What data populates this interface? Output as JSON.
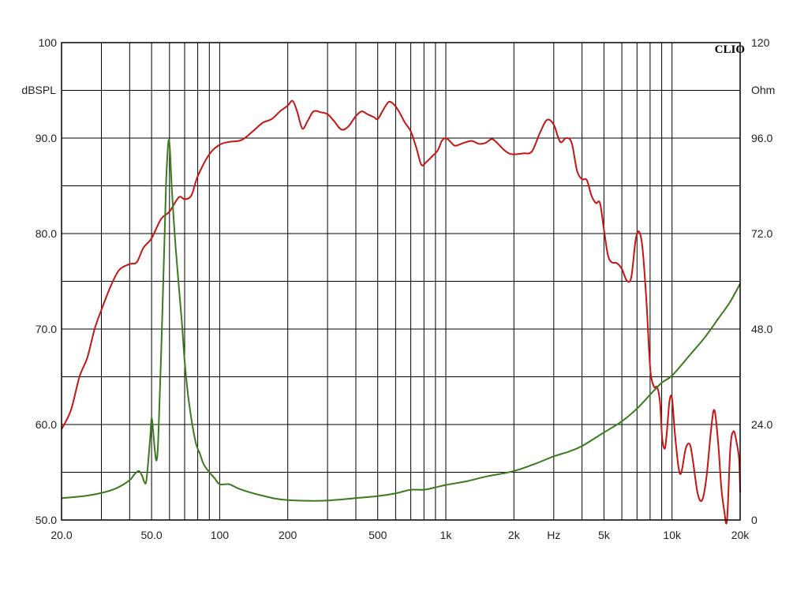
{
  "chart_data": {
    "type": "line",
    "brand": "CLIO",
    "x_scale": "log",
    "xlim": [
      20,
      20000
    ],
    "x_tick_labels": [
      {
        "value": 20,
        "label": "20.0"
      },
      {
        "value": 50,
        "label": "50.0"
      },
      {
        "value": 100,
        "label": "100"
      },
      {
        "value": 200,
        "label": "200"
      },
      {
        "value": 500,
        "label": "500"
      },
      {
        "value": 1000,
        "label": "1k"
      },
      {
        "value": 2000,
        "label": "2k"
      },
      {
        "value": 3000,
        "label": "Hz"
      },
      {
        "value": 5000,
        "label": "5k"
      },
      {
        "value": 10000,
        "label": "10k"
      },
      {
        "value": 20000,
        "label": "20k"
      }
    ],
    "left_axis": {
      "unit": "dBSPL",
      "ylim": [
        50,
        100
      ],
      "tick_labels": [
        {
          "value": 100,
          "label": "100"
        },
        {
          "value": 90,
          "label": "90.0"
        },
        {
          "value": 80,
          "label": "80.0"
        },
        {
          "value": 70,
          "label": "70.0"
        },
        {
          "value": 60,
          "label": "60.0"
        },
        {
          "value": 50,
          "label": "50.0"
        }
      ]
    },
    "right_axis": {
      "unit": "Ohm",
      "ylim": [
        0,
        120
      ],
      "tick_labels": [
        {
          "value": 120,
          "label": "120"
        },
        {
          "value": 96,
          "label": "96.0"
        },
        {
          "value": 72,
          "label": "72.0"
        },
        {
          "value": 48,
          "label": "48.0"
        },
        {
          "value": 24,
          "label": "24.0"
        },
        {
          "value": 0,
          "label": "0"
        }
      ]
    },
    "grid": true,
    "series": [
      {
        "axis": "left",
        "color": "#c81414",
        "points": [
          [
            20,
            59.5
          ],
          [
            22,
            61.5
          ],
          [
            24,
            65
          ],
          [
            26,
            67
          ],
          [
            28,
            70
          ],
          [
            30,
            72
          ],
          [
            33,
            74.5
          ],
          [
            36,
            76.2
          ],
          [
            40,
            76.8
          ],
          [
            43,
            77
          ],
          [
            46,
            78.5
          ],
          [
            50,
            79.5
          ],
          [
            55,
            81.5
          ],
          [
            60,
            82.3
          ],
          [
            66,
            83.8
          ],
          [
            70,
            83.6
          ],
          [
            75,
            84
          ],
          [
            80,
            86
          ],
          [
            90,
            88.3
          ],
          [
            100,
            89.3
          ],
          [
            110,
            89.6
          ],
          [
            125,
            89.8
          ],
          [
            140,
            90.7
          ],
          [
            155,
            91.6
          ],
          [
            170,
            92
          ],
          [
            185,
            92.8
          ],
          [
            200,
            93.4
          ],
          [
            210,
            93.9
          ],
          [
            220,
            92.8
          ],
          [
            232,
            91
          ],
          [
            245,
            91.8
          ],
          [
            260,
            92.8
          ],
          [
            280,
            92.7
          ],
          [
            300,
            92.5
          ],
          [
            320,
            91.8
          ],
          [
            345,
            90.9
          ],
          [
            370,
            91.2
          ],
          [
            400,
            92.3
          ],
          [
            425,
            92.8
          ],
          [
            450,
            92.5
          ],
          [
            480,
            92.2
          ],
          [
            500,
            92
          ],
          [
            530,
            93
          ],
          [
            560,
            93.8
          ],
          [
            590,
            93.5
          ],
          [
            620,
            92.8
          ],
          [
            660,
            91.6
          ],
          [
            700,
            90.7
          ],
          [
            740,
            89
          ],
          [
            780,
            87.2
          ],
          [
            820,
            87.5
          ],
          [
            870,
            88.1
          ],
          [
            920,
            88.7
          ],
          [
            960,
            89.7
          ],
          [
            1000,
            90
          ],
          [
            1050,
            89.6
          ],
          [
            1100,
            89.2
          ],
          [
            1200,
            89.5
          ],
          [
            1300,
            89.7
          ],
          [
            1400,
            89.4
          ],
          [
            1500,
            89.5
          ],
          [
            1600,
            89.9
          ],
          [
            1700,
            89.4
          ],
          [
            1800,
            88.8
          ],
          [
            1900,
            88.4
          ],
          [
            2000,
            88.3
          ],
          [
            2200,
            88.4
          ],
          [
            2400,
            88.6
          ],
          [
            2600,
            90.5
          ],
          [
            2800,
            91.9
          ],
          [
            3000,
            91.4
          ],
          [
            3200,
            89.6
          ],
          [
            3400,
            90
          ],
          [
            3600,
            89.5
          ],
          [
            3800,
            86.6
          ],
          [
            4000,
            85.7
          ],
          [
            4200,
            85.6
          ],
          [
            4400,
            84
          ],
          [
            4600,
            83.2
          ],
          [
            4800,
            83.2
          ],
          [
            5000,
            80.4
          ],
          [
            5200,
            77.8
          ],
          [
            5400,
            77
          ],
          [
            5700,
            76.9
          ],
          [
            6000,
            76.3
          ],
          [
            6300,
            75.1
          ],
          [
            6600,
            75.4
          ],
          [
            6900,
            79.3
          ],
          [
            7150,
            80.2
          ],
          [
            7400,
            78.5
          ],
          [
            7700,
            73
          ],
          [
            8000,
            66
          ],
          [
            8300,
            64
          ],
          [
            8600,
            63.9
          ],
          [
            8850,
            62.3
          ],
          [
            9050,
            58.5
          ],
          [
            9300,
            57.5
          ],
          [
            9500,
            59.4
          ],
          [
            9750,
            62.5
          ],
          [
            10000,
            62.7
          ],
          [
            10300,
            59
          ],
          [
            10700,
            55.4
          ],
          [
            11000,
            55
          ],
          [
            11500,
            57.5
          ],
          [
            12000,
            57.9
          ],
          [
            12400,
            56
          ],
          [
            13000,
            52.7
          ],
          [
            13600,
            52.1
          ],
          [
            14200,
            54.5
          ],
          [
            14900,
            59.6
          ],
          [
            15400,
            61.5
          ],
          [
            16000,
            58
          ],
          [
            16500,
            53.5
          ],
          [
            17000,
            51
          ],
          [
            17500,
            50
          ],
          [
            18100,
            57.5
          ],
          [
            18700,
            59.3
          ],
          [
            19300,
            58.1
          ],
          [
            19800,
            56.3
          ],
          [
            20000,
            52.9
          ]
        ]
      },
      {
        "axis": "right",
        "color": "#3c7a1e",
        "points": [
          [
            20,
            5.5
          ],
          [
            25,
            6
          ],
          [
            30,
            6.8
          ],
          [
            35,
            8
          ],
          [
            40,
            10
          ],
          [
            42,
            11.5
          ],
          [
            44,
            12.3
          ],
          [
            45.5,
            11
          ],
          [
            46.5,
            9.5
          ],
          [
            47.5,
            10.2
          ],
          [
            49.2,
            20
          ],
          [
            50,
            25.5
          ],
          [
            50.7,
            23
          ],
          [
            51.7,
            17.5
          ],
          [
            52.6,
            15
          ],
          [
            53.5,
            20
          ],
          [
            55,
            40
          ],
          [
            57,
            70
          ],
          [
            58,
            85
          ],
          [
            58.8,
            92
          ],
          [
            59.5,
            95.5
          ],
          [
            60.3,
            93
          ],
          [
            61.5,
            83
          ],
          [
            64,
            68
          ],
          [
            68,
            50
          ],
          [
            70,
            40
          ],
          [
            73,
            30
          ],
          [
            78,
            20
          ],
          [
            82,
            16.5
          ],
          [
            85,
            14
          ],
          [
            90,
            12
          ],
          [
            95,
            10.5
          ],
          [
            100,
            9
          ],
          [
            110,
            9
          ],
          [
            120,
            8
          ],
          [
            135,
            7
          ],
          [
            150,
            6.3
          ],
          [
            175,
            5.4
          ],
          [
            200,
            5
          ],
          [
            260,
            4.8
          ],
          [
            300,
            4.9
          ],
          [
            400,
            5.5
          ],
          [
            500,
            6
          ],
          [
            600,
            6.7
          ],
          [
            700,
            7.6
          ],
          [
            800,
            7.6
          ],
          [
            900,
            8.2
          ],
          [
            1000,
            8.8
          ],
          [
            1250,
            9.8
          ],
          [
            1500,
            10.9
          ],
          [
            2000,
            12.3
          ],
          [
            2500,
            14.2
          ],
          [
            3000,
            16
          ],
          [
            3500,
            17.2
          ],
          [
            4000,
            18.6
          ],
          [
            5000,
            22
          ],
          [
            6000,
            24.8
          ],
          [
            7000,
            28
          ],
          [
            8000,
            31.5
          ],
          [
            9000,
            34.5
          ],
          [
            10000,
            36.3
          ],
          [
            12000,
            41.5
          ],
          [
            14000,
            46
          ],
          [
            16000,
            50.6
          ],
          [
            18000,
            54.7
          ],
          [
            20000,
            59.4
          ]
        ]
      }
    ]
  }
}
